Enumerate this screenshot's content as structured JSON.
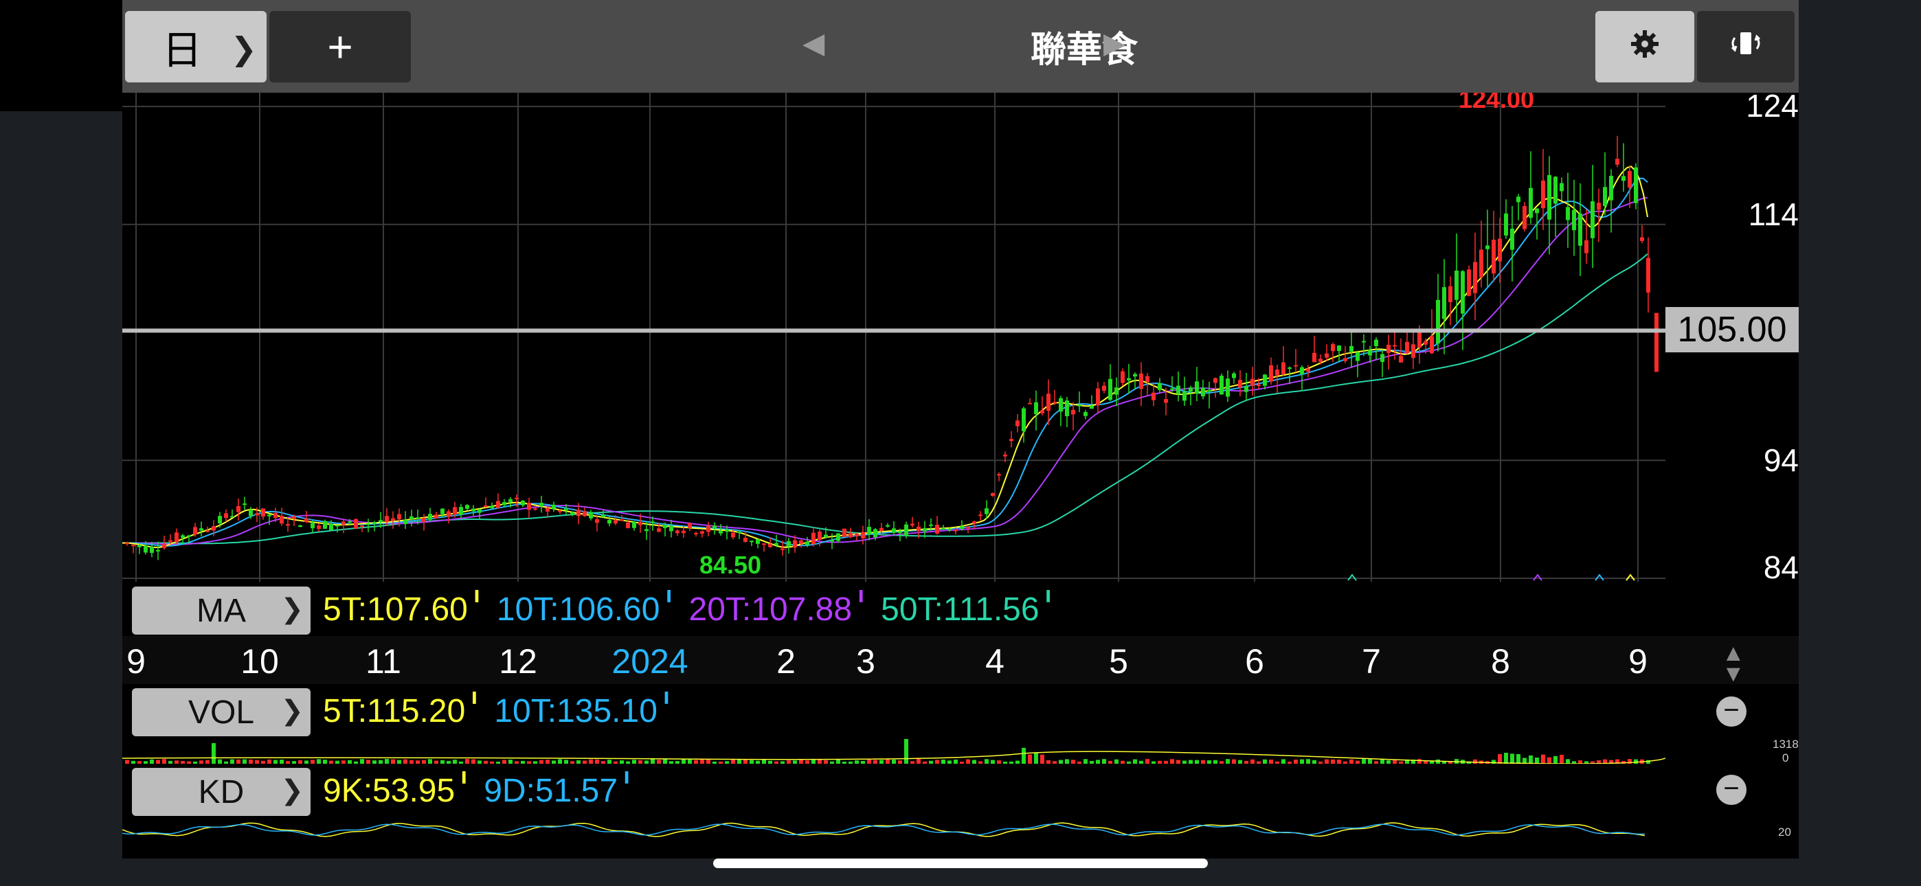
{
  "header": {
    "period_label": "日",
    "add_label": "+",
    "stock_name": "聯華食",
    "prev_symbol": "◀",
    "next_symbol": "▶"
  },
  "icons": {
    "chevron": "chevron-right-icon",
    "gear": "gear-icon",
    "rotate": "rotate-screen-icon",
    "minus": "minus-circle-icon"
  },
  "price_axis": {
    "labels": [
      "124",
      "114",
      "94",
      "84"
    ],
    "current_price": "105.00"
  },
  "chart_annotations": {
    "high": "124.00",
    "low": "84.50"
  },
  "ma": {
    "label": "MA",
    "values": [
      {
        "text": "5T:107.60",
        "color": "#ffff33"
      },
      {
        "text": "10T:106.60",
        "color": "#27b6ff"
      },
      {
        "text": "20T:107.88",
        "color": "#b23cff"
      },
      {
        "text": "50T:111.56",
        "color": "#28d6a8"
      }
    ]
  },
  "months": [
    {
      "text": "9",
      "color": "#ffffff"
    },
    {
      "text": "10",
      "color": "#ffffff"
    },
    {
      "text": "11",
      "color": "#ffffff"
    },
    {
      "text": "12",
      "color": "#ffffff"
    },
    {
      "text": "2024",
      "color": "#27b6ff"
    },
    {
      "text": "2",
      "color": "#ffffff"
    },
    {
      "text": "3",
      "color": "#ffffff"
    },
    {
      "text": "4",
      "color": "#ffffff"
    },
    {
      "text": "5",
      "color": "#ffffff"
    },
    {
      "text": "6",
      "color": "#ffffff"
    },
    {
      "text": "7",
      "color": "#ffffff"
    },
    {
      "text": "8",
      "color": "#ffffff"
    },
    {
      "text": "9",
      "color": "#ffffff"
    }
  ],
  "vol": {
    "label": "VOL",
    "values": [
      {
        "text": "5T:115.20",
        "color": "#ffff33"
      },
      {
        "text": "10T:135.10",
        "color": "#27b6ff"
      }
    ],
    "axis_max": "1318",
    "axis_min": "0"
  },
  "kd": {
    "label": "KD",
    "values": [
      {
        "text": "9K:53.95",
        "color": "#ffff33"
      },
      {
        "text": "9D:51.57",
        "color": "#27b6ff"
      }
    ],
    "axis_label": "20"
  },
  "colors": {
    "up": "#ff2a2a",
    "down": "#22dd22",
    "ma5": "#ffff33",
    "ma10": "#27b6ff",
    "ma20": "#b23cff",
    "ma50": "#28d6a8"
  },
  "chart_data": {
    "type": "candlestick",
    "title": "聯華食",
    "xlabel": "",
    "ylabel": "",
    "ylim": [
      84,
      124
    ],
    "x": [
      "2023-09",
      "2023-10",
      "2023-11",
      "2023-12",
      "2024-01",
      "2024-02",
      "2024-03",
      "2024-04",
      "2024-05",
      "2024-06",
      "2024-07",
      "2024-08",
      "2024-09"
    ],
    "close_approx": [
      87,
      89,
      88,
      89,
      87,
      86,
      90,
      99,
      100,
      102,
      115,
      110,
      105
    ],
    "series": [
      {
        "name": "5T",
        "last": 107.6
      },
      {
        "name": "10T",
        "last": 106.6
      },
      {
        "name": "20T",
        "last": 107.88
      },
      {
        "name": "50T",
        "last": 111.56
      }
    ],
    "high_label": 124.0,
    "low_label": 84.5,
    "current_price": 105.0
  }
}
